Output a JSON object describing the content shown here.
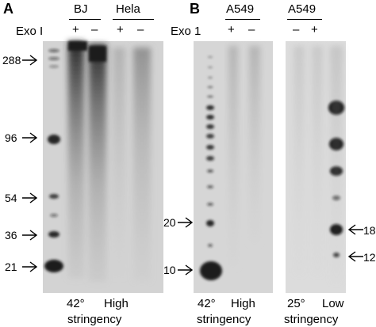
{
  "panel_a": {
    "letter": "A",
    "cell_lines": [
      "BJ",
      "Hela"
    ],
    "treatment_label": "Exo I",
    "lane_signs": [
      "+",
      "–",
      "+",
      "–"
    ],
    "markers": [
      "288",
      "96",
      "54",
      "36",
      "21"
    ],
    "conditions": [
      "42°",
      "High",
      "stringency"
    ]
  },
  "panel_b": {
    "letter": "B",
    "cell_line_1": "A549",
    "cell_line_2": "A549",
    "treatment_label": "Exo 1",
    "lane_signs_1": [
      "+",
      "–"
    ],
    "lane_signs_2": [
      "–",
      "+"
    ],
    "markers_left": [
      "20",
      "10"
    ],
    "markers_right": [
      "18",
      "12"
    ],
    "conditions_1": [
      "42°",
      "High",
      "stringency"
    ],
    "conditions_2": [
      "25°",
      "Low",
      "stringency"
    ]
  },
  "colors": {
    "gel_background": "#d4d4d4",
    "band": "#111111"
  }
}
